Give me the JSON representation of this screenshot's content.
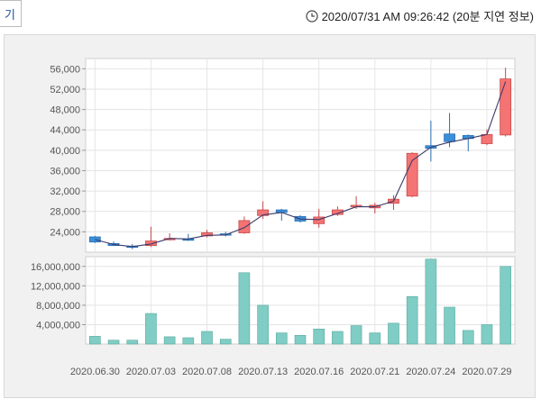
{
  "header": {
    "tab_label": "기",
    "timestamp": "2020/07/31 AM 09:26:42 (20분 지연 정보)"
  },
  "colors": {
    "up": "#f47373",
    "down": "#3b8fd9",
    "volume": "#7fcdc4",
    "ma_line": "#3a3a6a"
  },
  "chart_data": [
    {
      "type": "candlestick",
      "ylim": [
        20000,
        58000
      ],
      "yticks": [
        24000,
        28000,
        32000,
        36000,
        40000,
        44000,
        48000,
        52000,
        56000
      ],
      "ytick_labels": [
        "24,000",
        "28,000",
        "32,000",
        "36,000",
        "40,000",
        "44,000",
        "48,000",
        "52,000",
        "56,000"
      ],
      "x_tick_labels": [
        "2020.06.30",
        "2020.07.03",
        "2020.07.08",
        "2020.07.13",
        "2020.07.16",
        "2020.07.21",
        "2020.07.24",
        "2020.07.29"
      ],
      "x_tick_index": [
        0,
        3,
        6,
        9,
        12,
        15,
        18,
        21
      ],
      "candles": [
        {
          "open": 23000,
          "high": 23200,
          "low": 21800,
          "close": 22000
        },
        {
          "open": 21700,
          "high": 22100,
          "low": 21200,
          "close": 21300
        },
        {
          "open": 21200,
          "high": 21600,
          "low": 20600,
          "close": 21000
        },
        {
          "open": 21300,
          "high": 25000,
          "low": 21000,
          "close": 22200
        },
        {
          "open": 22600,
          "high": 23700,
          "low": 22300,
          "close": 22700
        },
        {
          "open": 22600,
          "high": 23600,
          "low": 22200,
          "close": 22400
        },
        {
          "open": 23200,
          "high": 24400,
          "low": 22900,
          "close": 23800
        },
        {
          "open": 23600,
          "high": 24000,
          "low": 23100,
          "close": 23400
        },
        {
          "open": 23800,
          "high": 27000,
          "low": 23600,
          "close": 26200
        },
        {
          "open": 27200,
          "high": 30000,
          "low": 26500,
          "close": 28300
        },
        {
          "open": 28300,
          "high": 28500,
          "low": 26200,
          "close": 27800
        },
        {
          "open": 27000,
          "high": 27300,
          "low": 25800,
          "close": 26100
        },
        {
          "open": 25600,
          "high": 28500,
          "low": 24800,
          "close": 26900
        },
        {
          "open": 27400,
          "high": 29000,
          "low": 27100,
          "close": 28300
        },
        {
          "open": 28900,
          "high": 31000,
          "low": 28500,
          "close": 29200
        },
        {
          "open": 28700,
          "high": 29700,
          "low": 27600,
          "close": 29200
        },
        {
          "open": 29600,
          "high": 31200,
          "low": 28300,
          "close": 30400
        },
        {
          "open": 31000,
          "high": 39600,
          "low": 30800,
          "close": 39400
        },
        {
          "open": 40900,
          "high": 45800,
          "low": 37800,
          "close": 40400
        },
        {
          "open": 43200,
          "high": 47300,
          "low": 40600,
          "close": 41700
        },
        {
          "open": 42900,
          "high": 43100,
          "low": 39800,
          "close": 42300
        },
        {
          "open": 41300,
          "high": 44100,
          "low": 41000,
          "close": 43100
        },
        {
          "open": 43000,
          "high": 56200,
          "low": 42700,
          "close": 54000
        }
      ],
      "ma_line": [
        22500,
        21500,
        21100,
        21600,
        22700,
        22600,
        23300,
        23400,
        24800,
        27300,
        27800,
        26500,
        26400,
        27600,
        28900,
        28900,
        30000,
        38000,
        40600,
        41600,
        42300,
        43100,
        53500
      ]
    },
    {
      "type": "bar",
      "ylim": [
        0,
        18000000
      ],
      "yticks": [
        4000000,
        8000000,
        12000000,
        16000000
      ],
      "ytick_labels": [
        "4,000,000",
        "8,000,000",
        "12,000,000",
        "16,000,000"
      ],
      "values": [
        1600000,
        800000,
        800000,
        6300000,
        1500000,
        1300000,
        2600000,
        1000000,
        14700000,
        8000000,
        2300000,
        1800000,
        3100000,
        2600000,
        3800000,
        2300000,
        4300000,
        9800000,
        17500000,
        7600000,
        2800000,
        4000000,
        16000000
      ]
    }
  ]
}
